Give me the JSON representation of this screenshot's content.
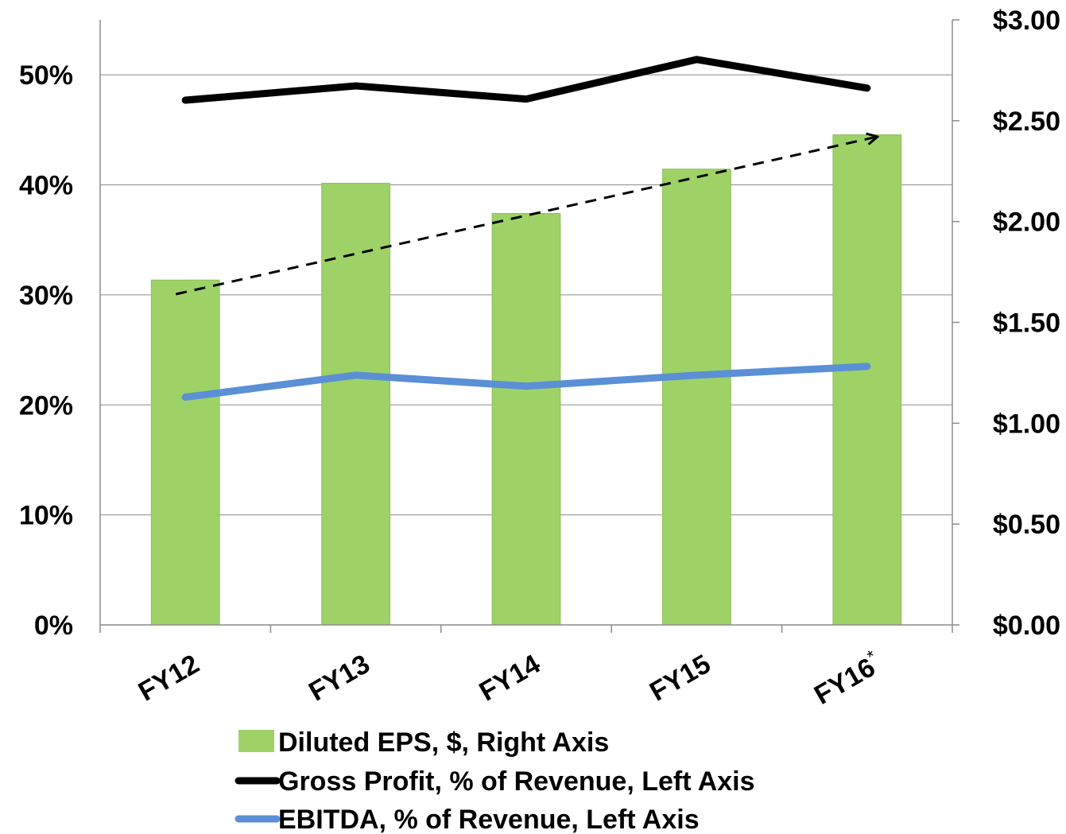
{
  "chart_data": {
    "type": "bar",
    "categories": [
      "FY12",
      "FY13",
      "FY14",
      "FY15",
      "FY16"
    ],
    "category_superscripts": [
      "",
      "",
      "",
      "",
      "*"
    ],
    "left_axis": {
      "ticks": [
        "0%",
        "10%",
        "20%",
        "30%",
        "40%",
        "50%"
      ],
      "range": [
        0,
        55
      ]
    },
    "right_axis": {
      "ticks": [
        "$0.00",
        "$0.50",
        "$1.00",
        "$1.50",
        "$2.00",
        "$2.50",
        "$3.00"
      ],
      "range": [
        0,
        3.0
      ]
    },
    "grid": true,
    "legend_position": "bottom",
    "series": [
      {
        "name": "Diluted EPS, $, Right Axis",
        "kind": "bar",
        "axis": "right",
        "color": "#9ed267",
        "values": [
          1.71,
          2.19,
          2.04,
          2.26,
          2.43
        ]
      },
      {
        "name": "Gross Profit, % of Revenue, Left Axis",
        "kind": "line",
        "axis": "left",
        "color": "#000000",
        "values": [
          47.7,
          49.0,
          47.8,
          51.4,
          48.8
        ]
      },
      {
        "name": "EBITDA, % of Revenue, Left Axis",
        "kind": "line",
        "axis": "left",
        "color": "#5b8fd6",
        "values": [
          20.7,
          22.7,
          21.7,
          22.7,
          23.5
        ]
      }
    ],
    "trend_arrow": {
      "style": "dashed",
      "axis": "right",
      "from": {
        "category": "FY12",
        "value": 1.64
      },
      "to": {
        "category": "FY16",
        "value": 2.42
      }
    }
  }
}
